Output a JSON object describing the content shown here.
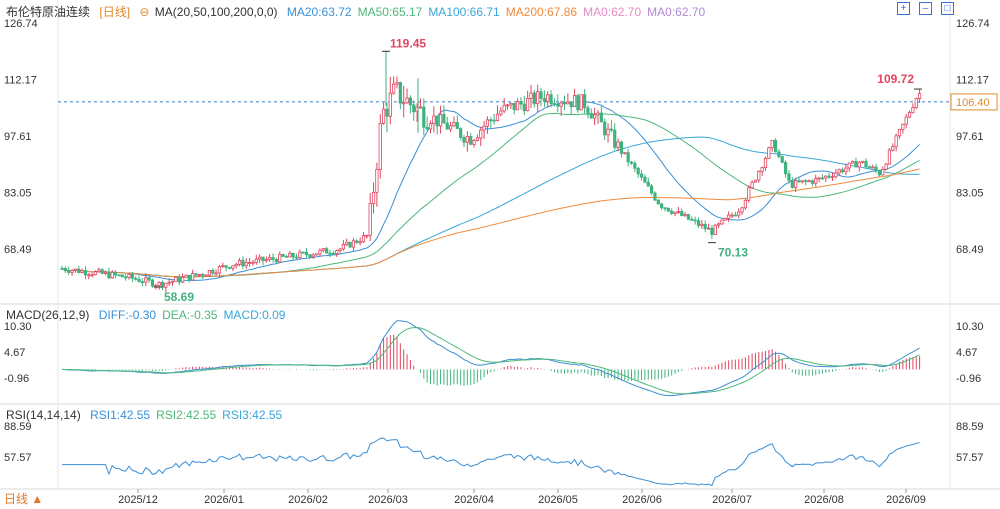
{
  "header": {
    "instrument": "布伦特原油连续",
    "period": "[日线]",
    "ma_label": "MA(20,50,100,200,0,0)",
    "ma_values": [
      {
        "text": "MA20:63.72",
        "color": "#3a8fd6"
      },
      {
        "text": "MA50:65.17",
        "color": "#4cb87a"
      },
      {
        "text": "MA100:66.71",
        "color": "#3aa7d8"
      },
      {
        "text": "MA200:67.86",
        "color": "#f08a3c"
      },
      {
        "text": "MA0:62.70",
        "color": "#e98ac4"
      },
      {
        "text": "MA0:62.70",
        "color": "#b28ad8"
      }
    ]
  },
  "macd_header": {
    "label": "MACD(26,12,9)",
    "values": [
      {
        "text": "DIFF:-0.30",
        "color": "#3a8fd6"
      },
      {
        "text": "DEA:-0.35",
        "color": "#4cb87a"
      },
      {
        "text": "MACD:0.09",
        "color": "#3aa7d8"
      }
    ]
  },
  "rsi_header": {
    "label": "RSI(14,14,14)",
    "values": [
      {
        "text": "RSI1:42.55",
        "color": "#3a8fd6"
      },
      {
        "text": "RSI2:42.55",
        "color": "#4cb87a"
      },
      {
        "text": "RSI3:42.55",
        "color": "#3aa7d8"
      }
    ]
  },
  "footer": {
    "period_button": "日线 ▲"
  },
  "toolbar": {
    "icons": [
      "add-icon",
      "minimize-icon",
      "maximize-icon"
    ]
  },
  "chart_data": {
    "type": "candlestick",
    "price_axis_labels": [
      "126.74",
      "112.17",
      "97.61",
      "83.05",
      "68.49"
    ],
    "price_axis_values": [
      126.74,
      112.17,
      97.61,
      83.05,
      68.49
    ],
    "current_price": "106.40",
    "current_price_value": 106.4,
    "annotations": [
      {
        "text": "119.45",
        "value": 119.45,
        "kind": "high"
      },
      {
        "text": "58.69",
        "value": 58.69,
        "kind": "low"
      },
      {
        "text": "70.13",
        "value": 70.13,
        "kind": "low"
      },
      {
        "text": "109.72",
        "value": 109.72,
        "kind": "high"
      }
    ],
    "x_ticks": [
      "2025/12",
      "2026/01",
      "2026/02",
      "2026/03",
      "2026/04",
      "2026/05",
      "2026/06",
      "2026/07",
      "2026/08",
      "2026/09"
    ],
    "close_path_anchors": [
      [
        "2025/11",
        63.5
      ],
      [
        "2025/12",
        61.2
      ],
      [
        "2025/12",
        59.4
      ],
      [
        "2026/01",
        62.0
      ],
      [
        "2026/01",
        64.5
      ],
      [
        "2026/02",
        66.5
      ],
      [
        "2026/02",
        68.5
      ],
      [
        "2026/03",
        72.0
      ],
      [
        "2026/03",
        103.0
      ],
      [
        "2026/03",
        109.0
      ],
      [
        "2026/04",
        104.0
      ],
      [
        "2026/04",
        97.0
      ],
      [
        "2026/04",
        104.0
      ],
      [
        "2026/05",
        108.0
      ],
      [
        "2026/05",
        106.0
      ],
      [
        "2026/06",
        97.0
      ],
      [
        "2026/06",
        80.0
      ],
      [
        "2026/06",
        73.0
      ],
      [
        "2026/07",
        79.0
      ],
      [
        "2026/07",
        96.0
      ],
      [
        "2026/07",
        85.0
      ],
      [
        "2026/08",
        86.5
      ],
      [
        "2026/08",
        91.0
      ],
      [
        "2026/08",
        88.0
      ],
      [
        "2026/09",
        108.5
      ]
    ],
    "moving_averages": [
      {
        "name": "MA20",
        "color": "#3a8fd6"
      },
      {
        "name": "MA50",
        "color": "#4cb87a"
      },
      {
        "name": "MA100",
        "color": "#3aa7d8"
      },
      {
        "name": "MA200",
        "color": "#f08a3c"
      }
    ],
    "macd_axis_labels": [
      "10.30",
      "4.67",
      "-0.96"
    ],
    "macd_axis_values": [
      10.3,
      4.67,
      -0.96
    ],
    "rsi_axis_labels": [
      "88.59",
      "57.57"
    ],
    "rsi_axis_values": [
      88.59,
      57.57
    ],
    "up_color": "#e0465e",
    "down_color": "#3fb27f"
  }
}
